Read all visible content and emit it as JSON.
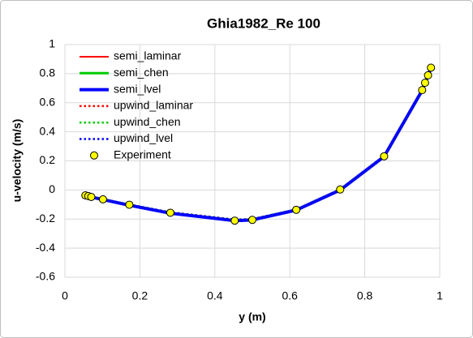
{
  "chart_data": {
    "type": "scatter",
    "title": "Ghia1982_Re 100",
    "x_label": "y (m)",
    "y_label": "u-velocity (m/s)",
    "xlim": [
      0,
      1
    ],
    "xticks": [
      0,
      0.2,
      0.4,
      0.6,
      0.8,
      1
    ],
    "ylim": [
      -0.6,
      1
    ],
    "yticks": [
      -0.6,
      -0.4,
      -0.2,
      0,
      0.2,
      0.4,
      0.6,
      0.8,
      1
    ],
    "grid": true,
    "legend": "upper left",
    "series": [
      {
        "name": "semi_laminar",
        "color": "#ff0000",
        "style": "solid",
        "width": 2,
        "x": [
          0.0547,
          0.1016,
          0.1719,
          0.2813,
          0.4531,
          0.5,
          0.6172,
          0.7344,
          0.8516,
          0.9531,
          0.98
        ],
        "values": [
          -0.038,
          -0.065,
          -0.103,
          -0.158,
          -0.209,
          -0.204,
          -0.137,
          0.002,
          0.228,
          0.68,
          0.86
        ]
      },
      {
        "name": "semi_chen",
        "color": "#00cc00",
        "style": "solid",
        "width": 3,
        "x": [
          0.0547,
          0.1016,
          0.1719,
          0.2813,
          0.4531,
          0.5,
          0.6172,
          0.7344,
          0.8516,
          0.9531,
          0.98
        ],
        "values": [
          -0.039,
          -0.066,
          -0.104,
          -0.159,
          -0.21,
          -0.205,
          -0.138,
          0.001,
          0.229,
          0.682,
          0.86
        ]
      },
      {
        "name": "semi_lvel",
        "color": "#0000ff",
        "style": "solid",
        "width": 4,
        "x": [
          0.0547,
          0.1016,
          0.1719,
          0.2813,
          0.4531,
          0.5,
          0.6172,
          0.7344,
          0.8516,
          0.9531,
          0.98
        ],
        "values": [
          -0.04,
          -0.066,
          -0.105,
          -0.16,
          -0.211,
          -0.206,
          -0.138,
          0.0,
          0.23,
          0.685,
          0.86
        ]
      },
      {
        "name": "upwind_laminar",
        "color": "#ff0000",
        "style": "dotted",
        "width": 2.5,
        "x": [
          0.0547,
          0.1016,
          0.1719,
          0.2813,
          0.4531,
          0.5,
          0.6172,
          0.7344,
          0.8516,
          0.9531,
          0.98
        ],
        "values": [
          -0.037,
          -0.063,
          -0.1,
          -0.153,
          -0.203,
          -0.2,
          -0.134,
          0.003,
          0.226,
          0.676,
          0.855
        ]
      },
      {
        "name": "upwind_chen",
        "color": "#00cc00",
        "style": "dotted",
        "width": 2.5,
        "x": [
          0.0547,
          0.1016,
          0.1719,
          0.2813,
          0.4531,
          0.5,
          0.6172,
          0.7344,
          0.8516,
          0.9531,
          0.98
        ],
        "values": [
          -0.037,
          -0.063,
          -0.1,
          -0.154,
          -0.204,
          -0.2,
          -0.134,
          0.003,
          0.226,
          0.676,
          0.855
        ]
      },
      {
        "name": "upwind_lvel",
        "color": "#0000ff",
        "style": "dotted",
        "width": 2.5,
        "x": [
          0.0547,
          0.1016,
          0.1719,
          0.2813,
          0.4531,
          0.5,
          0.6172,
          0.7344,
          0.8516,
          0.9531,
          0.98
        ],
        "values": [
          -0.038,
          -0.064,
          -0.101,
          -0.155,
          -0.205,
          -0.201,
          -0.135,
          0.002,
          0.227,
          0.678,
          0.857
        ]
      },
      {
        "name": "Experiment",
        "color": "#ffff00",
        "style": "marker",
        "x": [
          0.0547,
          0.0625,
          0.0703,
          0.1016,
          0.1719,
          0.2813,
          0.4531,
          0.5,
          0.6172,
          0.7344,
          0.8516,
          0.9531,
          0.9609,
          0.9688,
          0.9766
        ],
        "values": [
          -0.03717,
          -0.04192,
          -0.04775,
          -0.06434,
          -0.1015,
          -0.15662,
          -0.2109,
          -0.20581,
          -0.13641,
          0.00332,
          0.23151,
          0.68717,
          0.73722,
          0.78871,
          0.84123
        ]
      }
    ]
  }
}
